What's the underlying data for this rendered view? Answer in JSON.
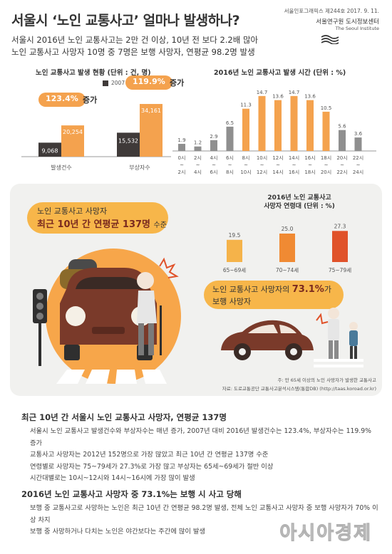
{
  "header": {
    "title": "서울시 ‘노인 교통사고’ 얼마나 발생하나?",
    "issue": "서울인포그래픽스 제244호 2017. 9. 11.",
    "org_kr": "서울연구원 도시정보센터",
    "org_en": "The Seoul Institute",
    "summary_line1": "서울시 2016년 노인 교통사고는 2만 건 이상, 10년 전 보다 2.2배 많아",
    "summary_line2": "노인 교통사고 사망자 10명 중 7명은 보행 사망자, 연평균 98.2명 발생"
  },
  "accident_panel": {
    "title": "노인 교통사고 발생 현황 (단위 : 건, 명)",
    "legend_2007": "2007",
    "legend_2016": "2016",
    "callout_left": "123.4%",
    "callout_left_suffix": "증가",
    "callout_right": "119.9%",
    "callout_right_suffix": "증가"
  },
  "time_panel": {
    "title": "2016년 노인 교통사고 발생 시간 (단위 : %)"
  },
  "middle": {
    "line1": "노인 교통사고 사망자",
    "line2": "최근 10년 간 연평균 137명",
    "line2_suffix": "수준",
    "ratio_title_1": "2016년 노인 교통사고",
    "ratio_title_2": "사망자 연령대 (단위 : %)",
    "ped_line1_prefix": "노인 교통사고 사망자의",
    "ped_line1_value": "73.1%",
    "ped_line1_suffix": "가",
    "ped_line2": "보행 사망자",
    "note1": "주: 만 65세 이상의 노인 사망자가 발생한 교통사고",
    "note2": "자료: 도로교통공단 교통사고분석시스템(통합DB) (http://taas.koroad.or.kr)"
  },
  "bottom": {
    "section1_title": "최근 10년 간 서울시 노인 교통사고 사망자, 연평균 137명",
    "section1_bullets": [
      "서울시 노인 교통사고 발생건수와 부상자수는 매년 증가, 2007년 대비 2016년 발생건수는 123.4%, 부상자수는 119.9% 증가",
      "교통사고 사망자는 2012년 152명으로 가장 많았고 최근 10년 간 연평균 137명 수준",
      "연령별로 사망자는 75~79세가 27.3%로 가장 많고 부상자는 65세~69세가 절반 이상",
      "시간대별로는 10시~12시와 14시~16시에 가장 많이 발생"
    ],
    "section2_title": "2016년 노인 교통사고 사망자 중 73.1%는 보행 시 사고 당해",
    "section2_bullets": [
      "보행 중 교통사고로 사망하는 노인은 최근 10년 간 연평균 98.2명 발생, 전체 노인 교통사고 사망자 중 보행 사망자가 70% 이상 차지",
      "보행 중 사망하거나 다치는 노인은 야간보다는 주간에 많이 발생"
    ]
  },
  "watermark": "아시아경제",
  "colors": {
    "bar_2007": "#3f3a39",
    "bar_2016": "#f4a24e",
    "time_low": "#8f8f8f",
    "time_high": "#f4a24e",
    "age_65_69": "#f5b34a",
    "age_70_74": "#f08a33",
    "age_75_79": "#e0522a",
    "accent": "#f4a24e"
  },
  "chart_data": [
    {
      "type": "bar",
      "categories": [
        "발생건수",
        "부상자수"
      ],
      "series": [
        {
          "name": "2007",
          "values": [
            9068,
            15532
          ]
        },
        {
          "name": "2016",
          "values": [
            20254,
            34161
          ]
        }
      ],
      "data_labels": [
        [
          "9,068",
          "20,254"
        ],
        [
          "15,532",
          "34,161"
        ]
      ],
      "ylim": [
        0,
        36000
      ]
    },
    {
      "type": "bar",
      "categories": [
        "0시~2시",
        "2시~4시",
        "4시~6시",
        "6시~8시",
        "8시~10시",
        "10시~12시",
        "12시~14시",
        "14시~16시",
        "16시~18시",
        "18시~20시",
        "20시~22시",
        "22시~24시"
      ],
      "tick_top": [
        "0시",
        "2시",
        "4시",
        "6시",
        "8시",
        "10시",
        "12시",
        "14시",
        "16시",
        "18시",
        "20시",
        "22시"
      ],
      "tick_bottom": [
        "2시",
        "4시",
        "6시",
        "8시",
        "10시",
        "12시",
        "14시",
        "16시",
        "18시",
        "20시",
        "22시",
        "24시"
      ],
      "values": [
        1.9,
        1.2,
        2.9,
        6.5,
        11.3,
        14.7,
        13.6,
        14.7,
        13.6,
        10.5,
        5.6,
        3.6
      ],
      "ylim": [
        0,
        16
      ]
    },
    {
      "type": "bar",
      "categories": [
        "65~69세",
        "70~74세",
        "75~79세"
      ],
      "values": [
        19.5,
        25.0,
        27.3
      ],
      "ylim": [
        0,
        30
      ]
    }
  ]
}
